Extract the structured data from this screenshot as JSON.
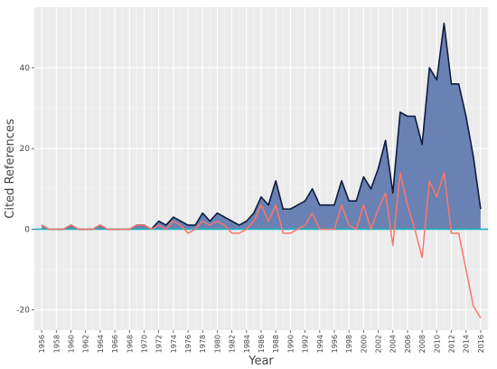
{
  "chart_data": {
    "type": "area",
    "xlabel": "Year",
    "ylabel": "Cited References",
    "xlim": [
      1955,
      2017
    ],
    "ylim": [
      -25,
      55
    ],
    "yticks": [
      -20,
      0,
      20,
      40
    ],
    "xticks": [
      1956,
      1958,
      1960,
      1962,
      1964,
      1966,
      1968,
      1970,
      1972,
      1974,
      1976,
      1978,
      1980,
      1982,
      1984,
      1986,
      1988,
      1990,
      1992,
      1994,
      1996,
      1998,
      2000,
      2002,
      2004,
      2006,
      2008,
      2010,
      2012,
      2014,
      2016
    ],
    "grid": true,
    "background": "#ebebeb",
    "zero_line_color": "#1fb3be",
    "x": [
      1956,
      1957,
      1958,
      1959,
      1960,
      1961,
      1962,
      1963,
      1964,
      1965,
      1966,
      1967,
      1968,
      1969,
      1970,
      1971,
      1972,
      1973,
      1974,
      1975,
      1976,
      1977,
      1978,
      1979,
      1980,
      1981,
      1982,
      1983,
      1984,
      1985,
      1986,
      1987,
      1988,
      1989,
      1990,
      1991,
      1992,
      1993,
      1994,
      1995,
      1996,
      1997,
      1998,
      1999,
      2000,
      2001,
      2002,
      2003,
      2004,
      2005,
      2006,
      2007,
      2008,
      2009,
      2010,
      2011,
      2012,
      2013,
      2014,
      2015,
      2016
    ],
    "series": [
      {
        "values": [
          1,
          0,
          0,
          0,
          1,
          0,
          0,
          0,
          1,
          0,
          0,
          0,
          0,
          1,
          1,
          0,
          2,
          1,
          3,
          2,
          1,
          1,
          4,
          2,
          4,
          3,
          2,
          1,
          2,
          4,
          8,
          6,
          12,
          5,
          5,
          6,
          7,
          10,
          6,
          6,
          6,
          12,
          7,
          7,
          13,
          10,
          15,
          22,
          9,
          29,
          28,
          28,
          21,
          40,
          37,
          51,
          36,
          36,
          28,
          18,
          5
        ],
        "fill_color": "#6a82b3",
        "line_color": "#0d1b3e"
      },
      {
        "values": [
          1,
          0,
          0,
          0,
          1,
          0,
          0,
          0,
          1,
          0,
          0,
          0,
          0,
          1,
          1,
          0,
          1,
          0,
          2,
          1,
          -1,
          0,
          2,
          1,
          2,
          1,
          -1,
          -1,
          0,
          2,
          6,
          2,
          6,
          -1,
          -1,
          0,
          1,
          4,
          0,
          0,
          0,
          6,
          1,
          0,
          6,
          0,
          5,
          9,
          -4,
          14,
          6,
          0,
          -7,
          12,
          8,
          14,
          -1,
          -1,
          -10,
          -19,
          -22
        ],
        "line_color": "#f8766d"
      }
    ]
  }
}
